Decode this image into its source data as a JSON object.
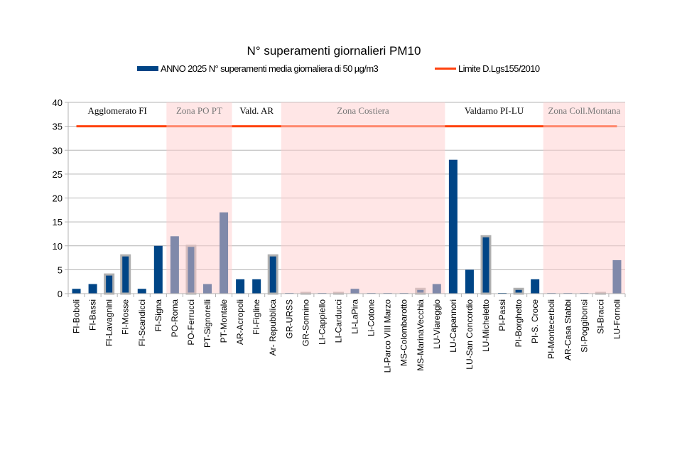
{
  "chart_data": {
    "type": "bar",
    "title": "N° superamenti giornalieri PM10",
    "categories": [
      "FI-Boboli",
      "FI-Bassi",
      "FI-Lavagnini",
      "FI-Mosse",
      "FI-Scandicci",
      "FI-Signa",
      "PO-Roma",
      "PO-Ferrucci",
      "PT-Signorelli",
      "PT-Montale",
      "AR-Acropoli",
      "FI-Figline",
      "Ar- Repubblica",
      "GR-URSS",
      "GR-Sonnino",
      "LI-Cappiello",
      "LI-Carducci",
      "LI-LaPira",
      "Li-Cotone",
      "LI-Parco VIII Marzo",
      "MS-Colombarotto",
      "MS-MarinaVecchia",
      "LU-Viareggio",
      "LU-Capannori",
      "LU-San Concordio",
      "LU-Micheletto",
      "PI-Passi",
      "PI-Borghetto",
      "PI-S. Croce",
      "PI-Montecerboli",
      "AR-Casa Stabbi",
      "SI-Poggibonsi",
      "SI-Bracci",
      "LU-Fornoli"
    ],
    "series": [
      {
        "name": "ANNO 2025  N° superamenti media giornaliera di 50 µg/m3",
        "type": "bar",
        "color": "#004586",
        "values": [
          1,
          2,
          4,
          8,
          1,
          10,
          12,
          10,
          2,
          17,
          3,
          3,
          8,
          0,
          0,
          0,
          0,
          1,
          0,
          0,
          0,
          1,
          2,
          28,
          5,
          12,
          0,
          1,
          3,
          0,
          0,
          0,
          0,
          7
        ],
        "highlighted": [
          "FI-Lavagnini",
          "FI-Mosse",
          "PO-Ferrucci",
          "Ar- Repubblica",
          "GR-Sonnino",
          "LI-Carducci",
          "MS-MarinaVecchia",
          "LU-Micheletto",
          "PI-Borghetto",
          "SI-Bracci"
        ]
      },
      {
        "name": "Limite D.Lgs155/2010",
        "type": "line",
        "color": "#ff420e",
        "value": 35
      }
    ],
    "zones": [
      {
        "label": "Agglomerato FI",
        "from": 0,
        "to": 5,
        "shaded": false
      },
      {
        "label": "Zona PO PT",
        "from": 6,
        "to": 9,
        "shaded": true
      },
      {
        "label": "Vald. AR",
        "from": 10,
        "to": 12,
        "shaded": false
      },
      {
        "label": "Zona Costiera",
        "from": 13,
        "to": 22,
        "shaded": true
      },
      {
        "label": "Valdarno PI-LU",
        "from": 23,
        "to": 28,
        "shaded": false
      },
      {
        "label": "Zona Coll.Montana",
        "from": 29,
        "to": 33,
        "shaded": true
      }
    ],
    "ylim": [
      0,
      40
    ],
    "yticks": [
      0,
      5,
      10,
      15,
      20,
      25,
      30,
      35,
      40
    ],
    "grid": true,
    "legend": "top",
    "xlabel": "",
    "ylabel": ""
  }
}
